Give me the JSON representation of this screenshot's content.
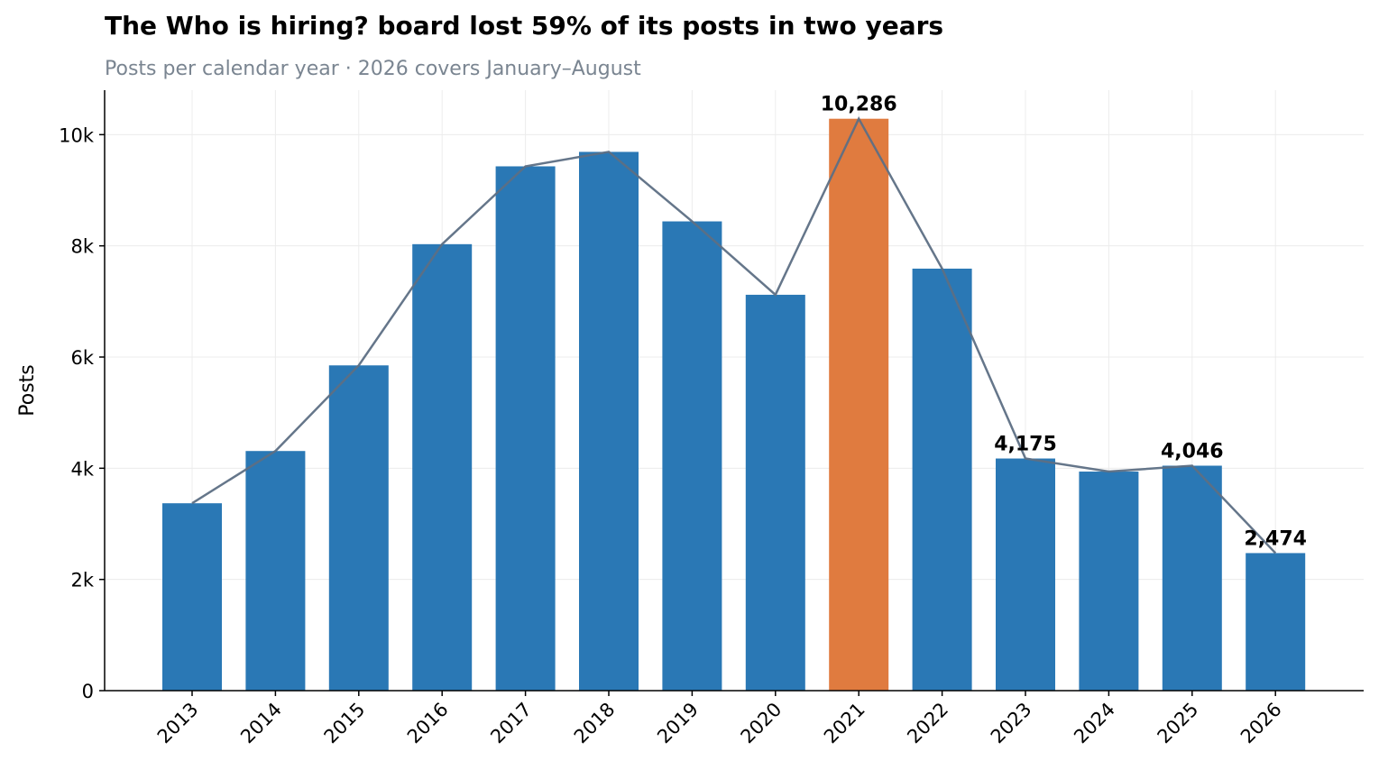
{
  "chart_data": {
    "type": "bar",
    "title": "The Who is hiring? board lost 59% of its posts in two years",
    "subtitle": "Posts per calendar year · 2026 covers January–August",
    "xlabel": "",
    "ylabel": "Posts",
    "categories": [
      "2013",
      "2014",
      "2015",
      "2016",
      "2017",
      "2018",
      "2019",
      "2020",
      "2021",
      "2022",
      "2023",
      "2024",
      "2025",
      "2026"
    ],
    "series": [
      {
        "values": [
          3370,
          4310,
          5850,
          8030,
          9430,
          9690,
          8440,
          7120,
          10286,
          7590,
          4175,
          3940,
          4046,
          2474
        ]
      }
    ],
    "overlay_line": {
      "type": "line",
      "values": [
        3370,
        4310,
        5850,
        8030,
        9430,
        9690,
        8440,
        7120,
        10286,
        7590,
        4175,
        3940,
        4046,
        2474
      ],
      "color": "#5d6f84"
    },
    "highlight_index": 8,
    "data_labels": [
      {
        "index": 8,
        "text": "10,286"
      },
      {
        "index": 10,
        "text": "4,175"
      },
      {
        "index": 12,
        "text": "4,046"
      },
      {
        "index": 13,
        "text": "2,474"
      }
    ],
    "ylim": [
      0,
      10800
    ],
    "yticks": [
      0,
      2000,
      4000,
      6000,
      8000,
      10000
    ],
    "ytick_labels": [
      "0",
      "2k",
      "4k",
      "6k",
      "8k",
      "10k"
    ],
    "grid": true,
    "legend": "none",
    "colors": {
      "bar": "#2a78b5",
      "highlight": "#e07b3f",
      "line": "#5d6f84",
      "grid": "#ececec",
      "subtitle": "#7a8591"
    }
  }
}
